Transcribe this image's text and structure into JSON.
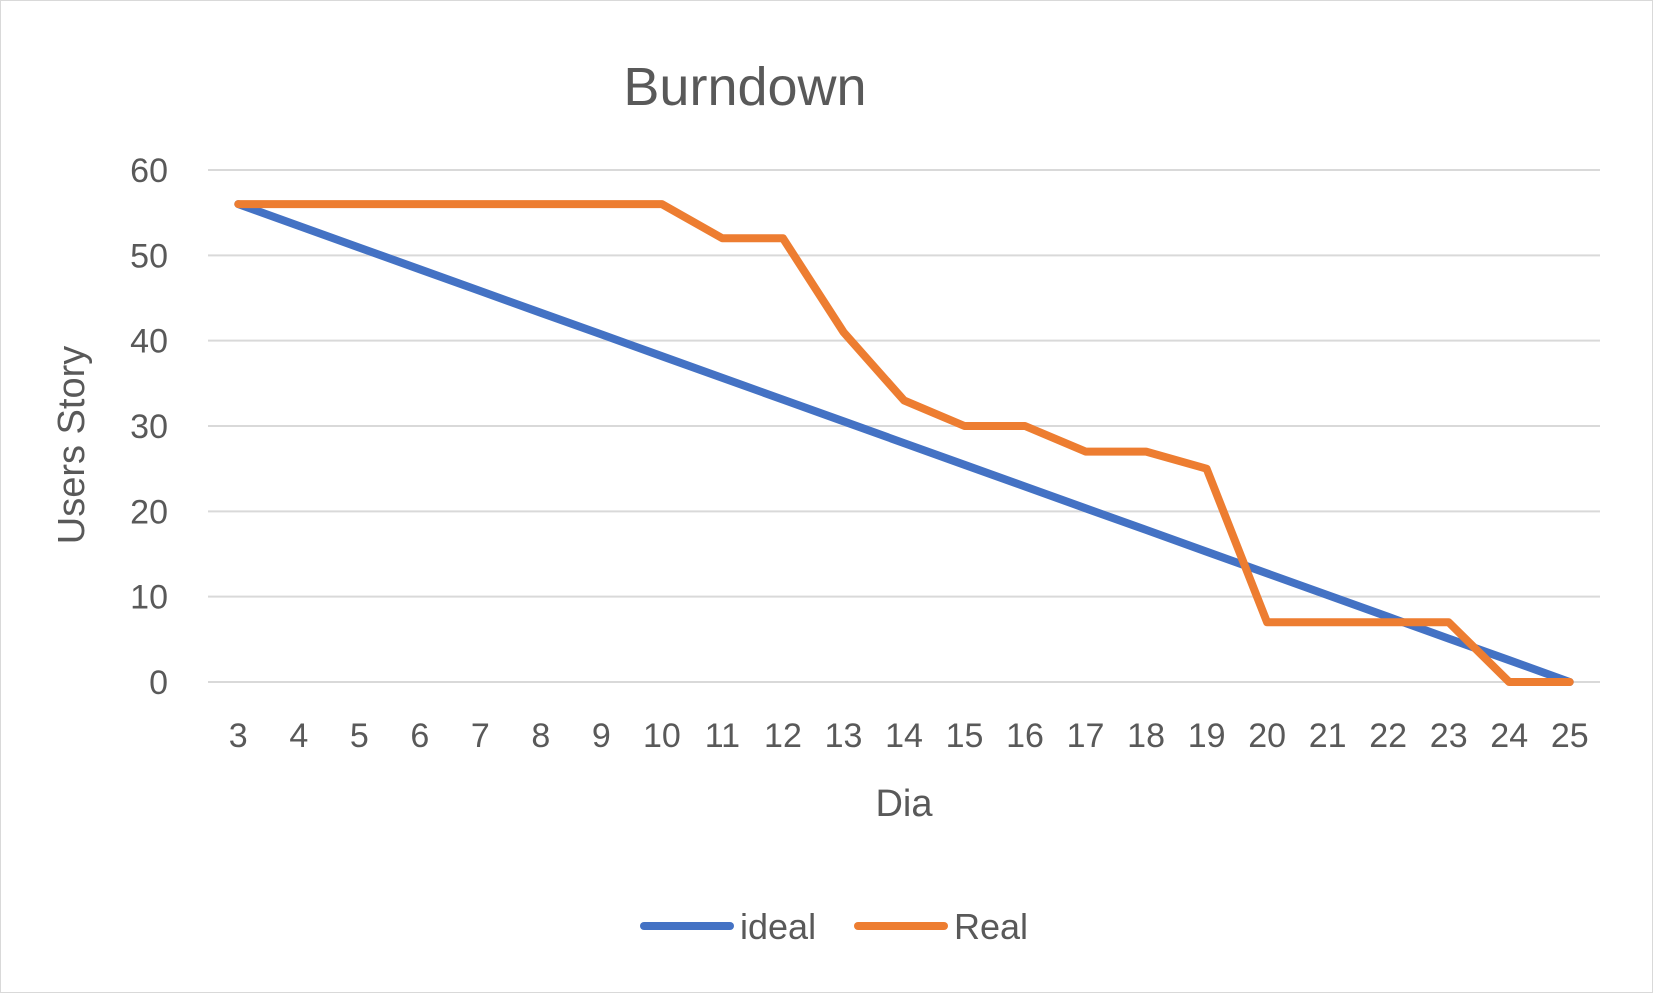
{
  "chart_data": {
    "type": "line",
    "title": "Burndown",
    "xlabel": "Dia",
    "ylabel": "Users Story",
    "categories": [
      "3",
      "4",
      "5",
      "6",
      "7",
      "8",
      "9",
      "10",
      "11",
      "12",
      "13",
      "14",
      "15",
      "16",
      "17",
      "18",
      "19",
      "20",
      "21",
      "22",
      "23",
      "24",
      "25"
    ],
    "ylim": [
      0,
      60
    ],
    "yticks": [
      0,
      10,
      20,
      30,
      40,
      50,
      60
    ],
    "grid": true,
    "legend_position": "bottom",
    "series": [
      {
        "name": "ideal",
        "color": "#4472c4",
        "values": [
          56,
          53.45,
          50.91,
          48.36,
          45.82,
          43.27,
          40.73,
          38.18,
          35.64,
          33.09,
          30.55,
          28,
          25.45,
          22.91,
          20.36,
          17.82,
          15.27,
          12.73,
          10.18,
          7.64,
          5.09,
          2.55,
          0
        ]
      },
      {
        "name": "Real",
        "color": "#ed7d31",
        "values": [
          56,
          56,
          56,
          56,
          56,
          56,
          56,
          56,
          52,
          52,
          41,
          33,
          30,
          30,
          27,
          27,
          25,
          7,
          7,
          7,
          7,
          0,
          0
        ]
      }
    ]
  }
}
